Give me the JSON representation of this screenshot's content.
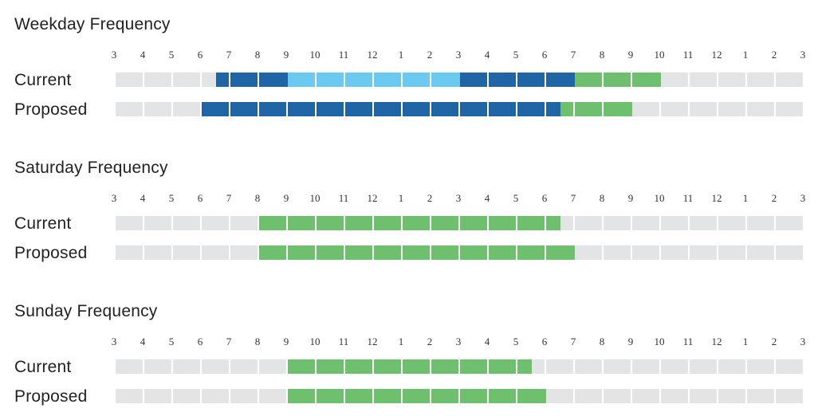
{
  "colors": {
    "empty": "#e3e4e6",
    "peak": "#1f65a6",
    "midday": "#6ac9ee",
    "other": "#6ebf6e",
    "separator": "#ffffff",
    "text": "#222222"
  },
  "chart_data": [
    {
      "type": "table",
      "title": "Weekday Frequency",
      "tick_labels": [
        "3",
        "4",
        "5",
        "6",
        "7",
        "8",
        "9",
        "10",
        "11",
        "12",
        "1",
        "2",
        "3",
        "4",
        "5",
        "6",
        "7",
        "8",
        "9",
        "10",
        "11",
        "12",
        "1",
        "2",
        "3"
      ],
      "rows": [
        {
          "label": "Current",
          "segments": [
            {
              "start": 6.5,
              "end": 9,
              "color": "peak"
            },
            {
              "start": 9,
              "end": 15,
              "color": "midday"
            },
            {
              "start": 15,
              "end": 19,
              "color": "peak"
            },
            {
              "start": 19,
              "end": 22,
              "color": "other"
            }
          ]
        },
        {
          "label": "Proposed",
          "segments": [
            {
              "start": 6,
              "end": 18.5,
              "color": "peak"
            },
            {
              "start": 18.5,
              "end": 21,
              "color": "other"
            }
          ]
        }
      ]
    },
    {
      "type": "table",
      "title": "Saturday Frequency",
      "tick_labels": [
        "3",
        "4",
        "5",
        "6",
        "7",
        "8",
        "9",
        "10",
        "11",
        "12",
        "1",
        "2",
        "3",
        "4",
        "5",
        "6",
        "7",
        "8",
        "9",
        "10",
        "11",
        "12",
        "1",
        "2",
        "3"
      ],
      "rows": [
        {
          "label": "Current",
          "segments": [
            {
              "start": 8,
              "end": 18.5,
              "color": "other"
            }
          ]
        },
        {
          "label": "Proposed",
          "segments": [
            {
              "start": 8,
              "end": 19,
              "color": "other"
            }
          ]
        }
      ]
    },
    {
      "type": "table",
      "title": "Sunday Frequency",
      "tick_labels": [
        "3",
        "4",
        "5",
        "6",
        "7",
        "8",
        "9",
        "10",
        "11",
        "12",
        "1",
        "2",
        "3",
        "4",
        "5",
        "6",
        "7",
        "8",
        "9",
        "10",
        "11",
        "12",
        "1",
        "2",
        "3"
      ],
      "rows": [
        {
          "label": "Current",
          "segments": [
            {
              "start": 9,
              "end": 17.5,
              "color": "other"
            }
          ]
        },
        {
          "label": "Proposed",
          "segments": [
            {
              "start": 9,
              "end": 18,
              "color": "other"
            }
          ]
        }
      ]
    }
  ]
}
